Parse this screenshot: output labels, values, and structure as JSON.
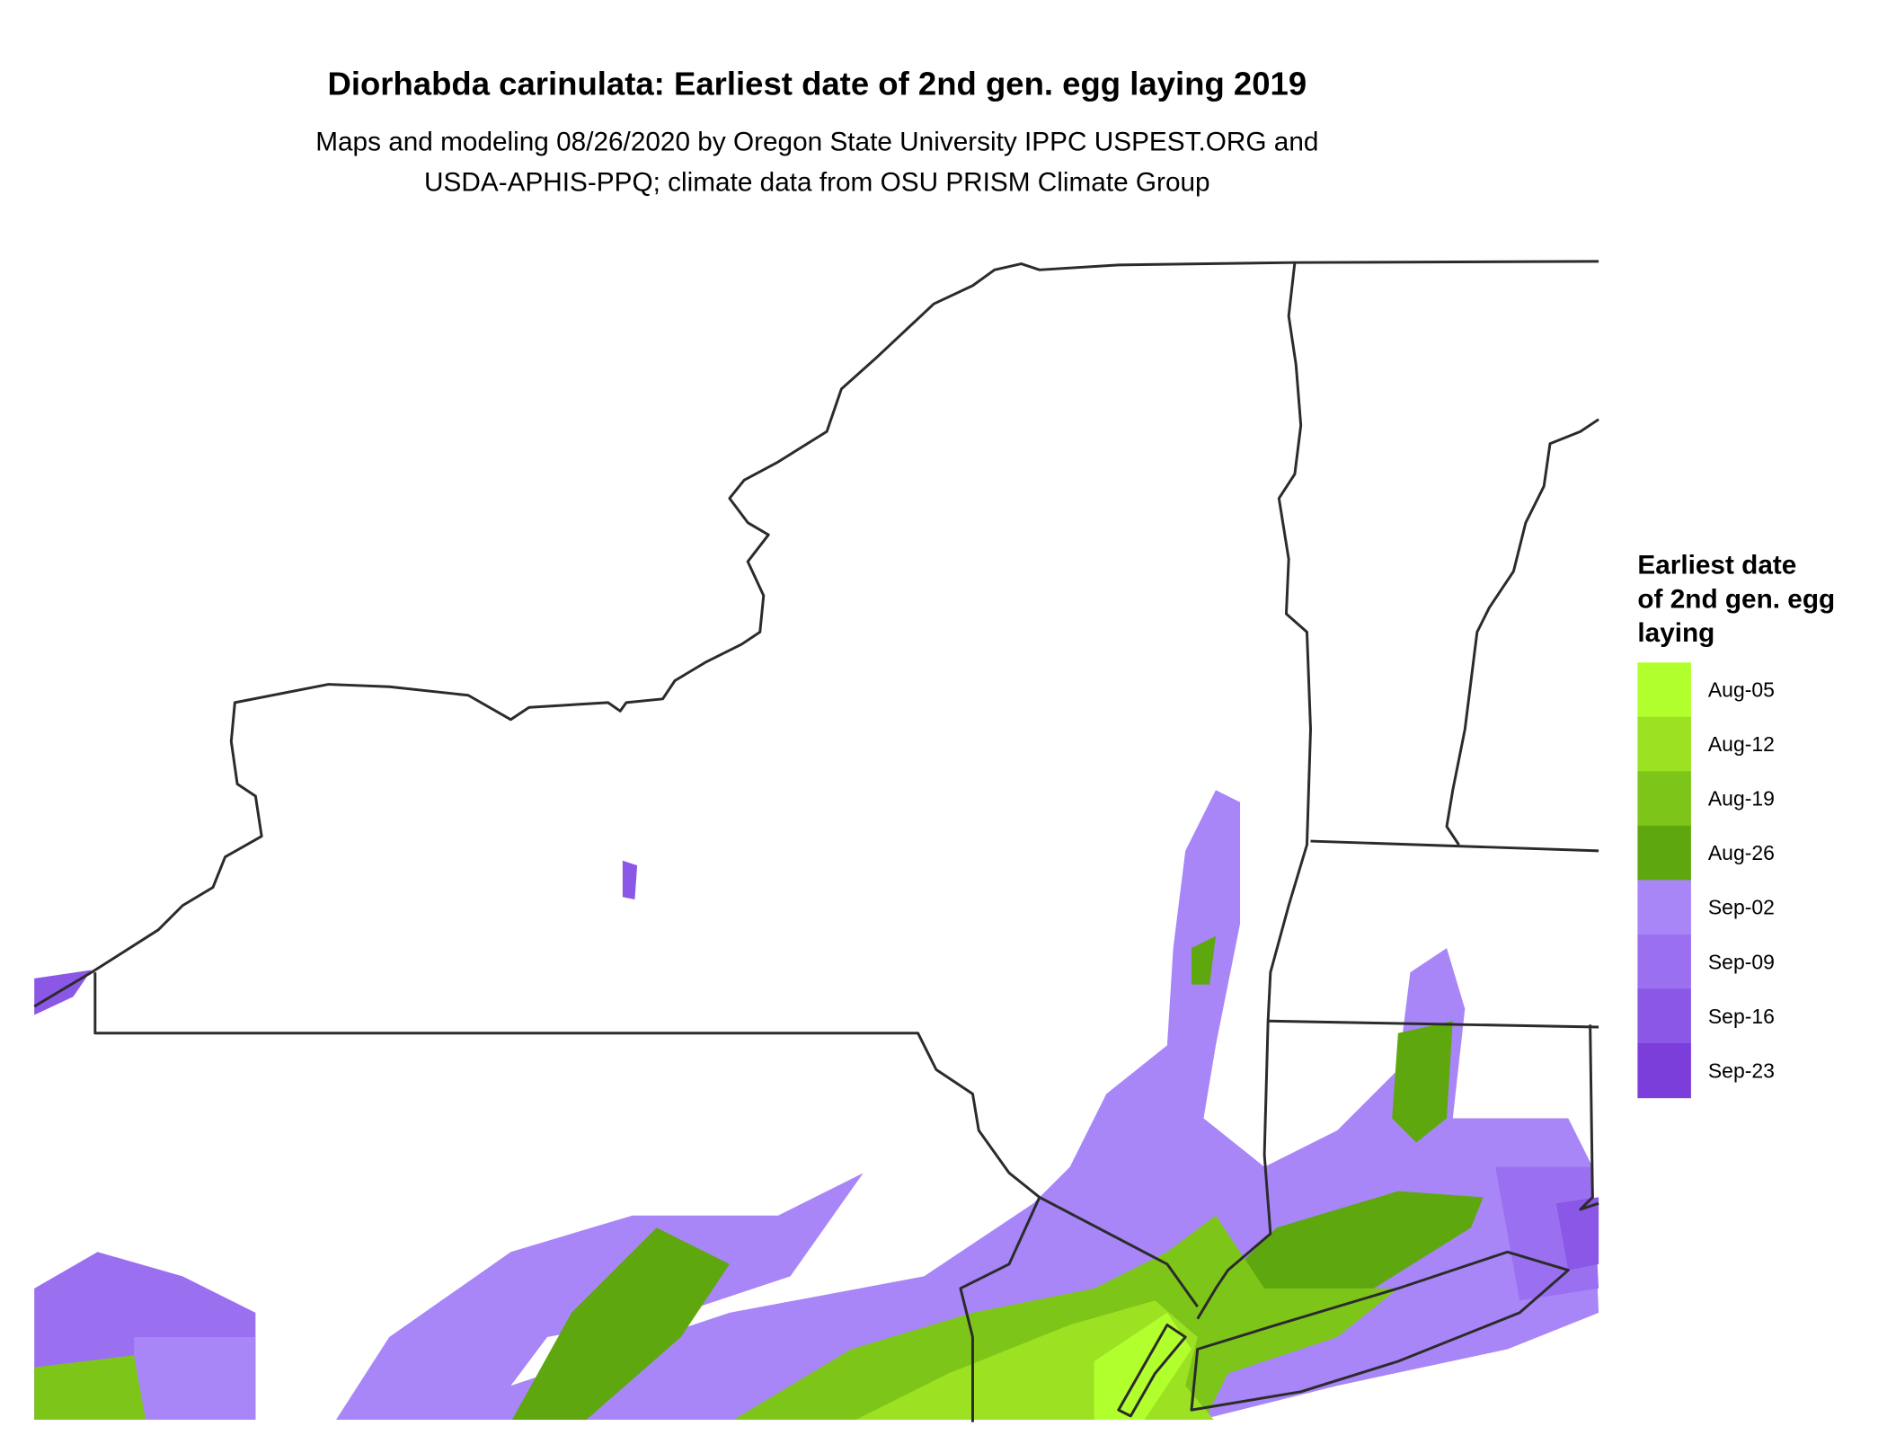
{
  "title": "Diorhabda carinulata: Earliest date of 2nd gen. egg laying 2019",
  "subtitle": [
    "Maps and modeling 08/26/2020 by Oregon State University IPPC USPEST.ORG and",
    "USDA-APHIS-PPQ; climate data from OSU PRISM Climate Group"
  ],
  "legend": {
    "title": [
      "Earliest date",
      "of 2nd gen. egg",
      "laying"
    ],
    "items": [
      {
        "label": "Aug-05",
        "color": "#b2ff2e"
      },
      {
        "label": "Aug-12",
        "color": "#9ce223"
      },
      {
        "label": "Aug-19",
        "color": "#7ec51a"
      },
      {
        "label": "Aug-26",
        "color": "#5fa70e"
      },
      {
        "label": "Sep-02",
        "color": "#a886f8"
      },
      {
        "label": "Sep-09",
        "color": "#9b70f0"
      },
      {
        "label": "Sep-16",
        "color": "#8b57e6"
      },
      {
        "label": "Sep-23",
        "color": "#7c3edb"
      }
    ]
  }
}
